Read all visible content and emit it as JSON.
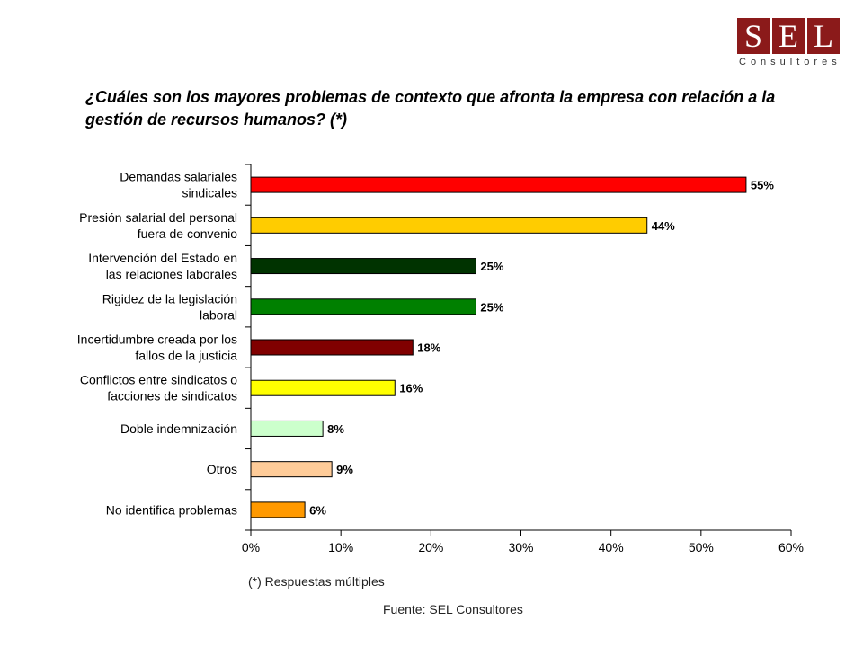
{
  "logo": {
    "letters": [
      "S",
      "E",
      "L"
    ],
    "subtitle": "Consultores",
    "color": "#8b1a1a"
  },
  "title": "¿Cuáles son los mayores problemas de contexto que afronta la empresa con relación a la gestión de recursos humanos? (*)",
  "chart_data": {
    "type": "bar",
    "orientation": "horizontal",
    "categories": [
      [
        "Demandas salariales",
        "sindicales"
      ],
      [
        "Presión salarial del personal",
        "fuera de convenio"
      ],
      [
        "Intervención del Estado en",
        "las relaciones laborales"
      ],
      [
        "Rigidez de la legislación",
        "laboral"
      ],
      [
        "Incertidumbre creada por los",
        "fallos de la justicia"
      ],
      [
        "Conflictos entre sindicatos o",
        "facciones de sindicatos"
      ],
      [
        "Doble indemnización"
      ],
      [
        "Otros"
      ],
      [
        "No identifica problemas"
      ]
    ],
    "values": [
      55,
      44,
      25,
      25,
      18,
      16,
      8,
      9,
      6
    ],
    "value_labels": [
      "55%",
      "44%",
      "25%",
      "25%",
      "18%",
      "16%",
      "8%",
      "9%",
      "6%"
    ],
    "colors": [
      "#ff0000",
      "#ffcc00",
      "#003300",
      "#008000",
      "#800000",
      "#ffff00",
      "#ccffcc",
      "#ffcc99",
      "#ff9900"
    ],
    "xlim": [
      0,
      60
    ],
    "xticks": [
      "0%",
      "10%",
      "20%",
      "30%",
      "40%",
      "50%",
      "60%"
    ],
    "grid": false,
    "legend": "none"
  },
  "footnote": "(*) Respuestas múltiples",
  "source": "Fuente: SEL Consultores"
}
